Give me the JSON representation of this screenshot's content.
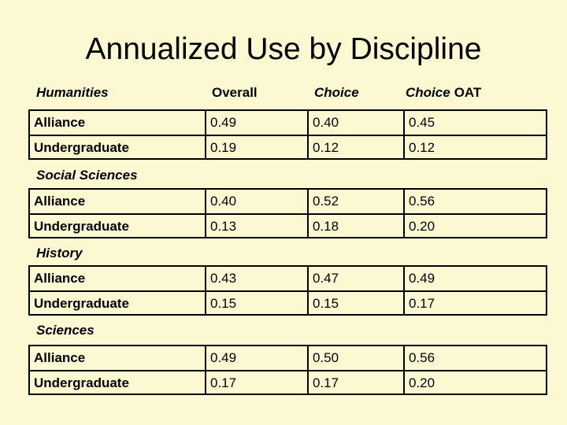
{
  "slide": {
    "title": "Annualized Use by Discipline"
  },
  "header": {
    "overall": "Overall",
    "choice": "Choice",
    "choice_oat_italic": "Choice",
    "choice_oat_suffix": "OAT"
  },
  "table": {
    "columns": [
      "Overall",
      "Choice",
      "Choice OAT"
    ],
    "sections": [
      {
        "name": "Humanities",
        "rows": [
          {
            "label": "Alliance",
            "values": [
              "0.49",
              "0.40",
              "0.45"
            ]
          },
          {
            "label": "Undergraduate",
            "values": [
              "0.19",
              "0.12",
              "0.12"
            ]
          }
        ]
      },
      {
        "name": "Social Sciences",
        "rows": [
          {
            "label": "Alliance",
            "values": [
              "0.40",
              "0.52",
              "0.56"
            ]
          },
          {
            "label": "Undergraduate",
            "values": [
              "0.13",
              "0.18",
              "0.20"
            ]
          }
        ]
      },
      {
        "name": "History",
        "rows": [
          {
            "label": "Alliance",
            "values": [
              "0.43",
              "0.47",
              "0.49"
            ]
          },
          {
            "label": "Undergraduate",
            "values": [
              "0.15",
              "0.15",
              "0.17"
            ]
          }
        ]
      },
      {
        "name": "Sciences",
        "rows": [
          {
            "label": "Alliance",
            "values": [
              "0.49",
              "0.50",
              "0.56"
            ]
          },
          {
            "label": "Undergraduate",
            "values": [
              "0.17",
              "0.17",
              "0.20"
            ]
          }
        ]
      }
    ]
  },
  "colors": {
    "background": "#FCF9D2",
    "text": "#000000",
    "table_border": "#000000"
  }
}
